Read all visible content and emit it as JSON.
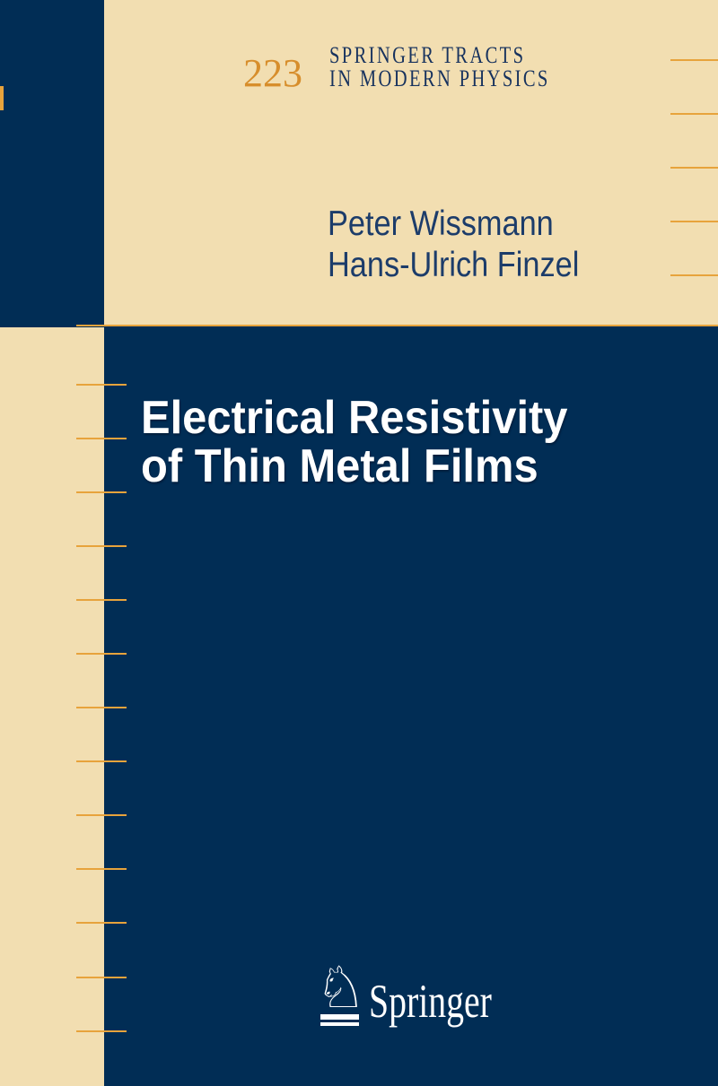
{
  "cover": {
    "series": {
      "number": "223",
      "title_line1": "SPRINGER TRACTS",
      "title_line2": "IN MODERN PHYSICS"
    },
    "authors": [
      "Peter Wissmann",
      "Hans-Ulrich Finzel"
    ],
    "title": {
      "line1": "Electrical Resistivity",
      "line2": "of Thin Metal Films"
    },
    "publisher": {
      "name": "Springer",
      "logo_icon": "springer-horse-knight-icon",
      "logo_glyph": "♘"
    }
  },
  "colors": {
    "navy": "#012d55",
    "cream": "#f2deb1",
    "tick_orange": "#e7a33c",
    "series_number_orange": "#d78e2c",
    "series_title_navy": "#17325e",
    "author_navy": "#1c3c6a",
    "title_white": "#ffffff"
  },
  "decor": {
    "right_ticks_y": [
      66,
      126,
      186,
      246,
      306
    ],
    "left_ticks_y": [
      428,
      488,
      548,
      608,
      668,
      728,
      788,
      848,
      908,
      968,
      1028,
      1089,
      1149
    ],
    "separator_y": 362,
    "spine_tab_y": 96
  }
}
